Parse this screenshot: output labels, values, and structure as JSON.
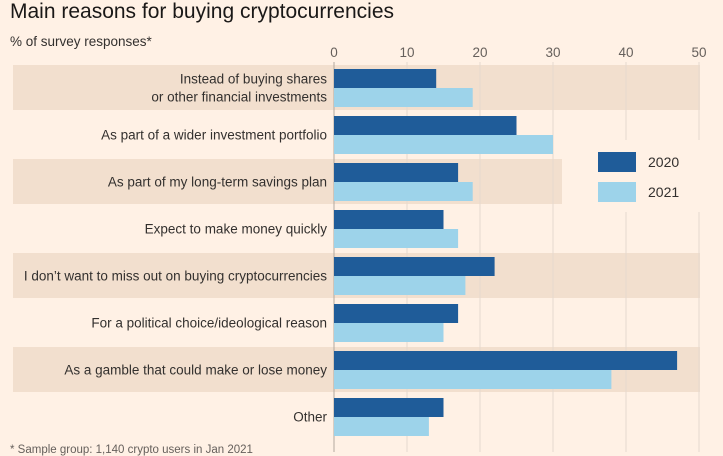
{
  "chart_data": {
    "type": "bar",
    "orientation": "horizontal",
    "title": "Main reasons for buying cryptocurrencies",
    "subtitle": "% of survey responses*",
    "footnote": "* Sample group: 1,140 crypto users in Jan 2021",
    "categories": [
      [
        "Instead of buying shares",
        "or other financial investments"
      ],
      [
        "As part of a wider investment portfolio"
      ],
      [
        "As part of my long-term savings plan"
      ],
      [
        "Expect to make money quickly"
      ],
      [
        "I don’t want to miss out on buying cryptocurrencies"
      ],
      [
        "For a political choice/ideological reason"
      ],
      [
        "As a gamble that could make or lose money"
      ],
      [
        "Other"
      ]
    ],
    "series": [
      {
        "name": "2020",
        "color": "#1F5C99",
        "values": [
          14,
          25,
          17,
          15,
          22,
          17,
          47,
          15
        ]
      },
      {
        "name": "2021",
        "color": "#9DD3EA",
        "values": [
          19,
          30,
          19,
          17,
          18,
          15,
          38,
          13
        ]
      }
    ],
    "xlim": [
      0,
      50
    ],
    "xticks": [
      0,
      10,
      20,
      30,
      40,
      50
    ],
    "legend_position": "right",
    "grid": true,
    "band_color": "#F2DFCE"
  }
}
